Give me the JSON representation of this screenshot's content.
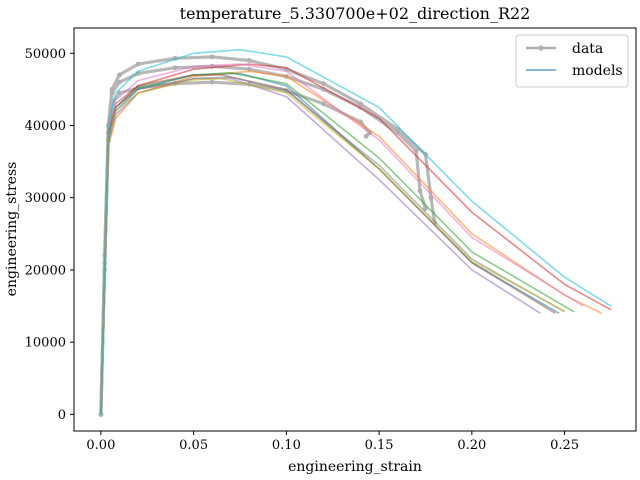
{
  "chart_data": {
    "type": "line",
    "title": "temperature_5.330700e+02_direction_R22",
    "xlabel": "engineering_strain",
    "ylabel": "engineering_stress",
    "xlim": [
      -0.0145,
      0.2885
    ],
    "ylim": [
      -2300,
      53500
    ],
    "xticks": [
      0.0,
      0.05,
      0.1,
      0.15,
      0.2,
      0.25
    ],
    "xtick_labels": [
      "0.00",
      "0.05",
      "0.10",
      "0.15",
      "0.20",
      "0.25"
    ],
    "yticks": [
      0,
      10000,
      20000,
      30000,
      40000,
      50000
    ],
    "ytick_labels": [
      "0",
      "10000",
      "20000",
      "30000",
      "40000",
      "50000"
    ],
    "grid": false,
    "legend": {
      "position": "top-right",
      "entries": [
        {
          "label": "data",
          "color": "#b0b0b0",
          "marker": "circle"
        },
        {
          "label": "models",
          "color": "#1f77b4",
          "marker": "none"
        }
      ]
    },
    "data_series": [
      {
        "color": "#b0b0b0",
        "x": [
          0.0,
          0.002,
          0.004,
          0.006,
          0.01,
          0.02,
          0.04,
          0.06,
          0.08,
          0.1,
          0.12,
          0.14,
          0.145,
          0.143
        ],
        "y": [
          0,
          20000,
          38000,
          43000,
          44500,
          45200,
          45800,
          46000,
          45700,
          44800,
          43000,
          40500,
          39000,
          38500
        ]
      },
      {
        "color": "#b0b0b0",
        "x": [
          0.0,
          0.002,
          0.004,
          0.006,
          0.01,
          0.02,
          0.04,
          0.06,
          0.08,
          0.1,
          0.12,
          0.14,
          0.16,
          0.175,
          0.178,
          0.18
        ],
        "y": [
          0,
          22000,
          40000,
          45000,
          47000,
          48500,
          49300,
          49500,
          49000,
          47800,
          45800,
          43000,
          39500,
          36000,
          30000,
          26500
        ]
      },
      {
        "color": "#b0b0b0",
        "x": [
          0.0,
          0.002,
          0.004,
          0.006,
          0.01,
          0.02,
          0.04,
          0.06,
          0.08,
          0.1,
          0.12,
          0.14,
          0.16,
          0.17,
          0.172,
          0.175
        ],
        "y": [
          0,
          21000,
          39000,
          44500,
          46000,
          47200,
          48000,
          48200,
          47800,
          46800,
          45000,
          42500,
          39000,
          36500,
          31000,
          28500
        ]
      }
    ],
    "models": [
      {
        "color": "#1f77b4",
        "x": [
          0.0,
          0.004,
          0.008,
          0.02,
          0.05,
          0.075,
          0.1,
          0.15,
          0.2,
          0.247
        ],
        "y": [
          0,
          38000,
          42000,
          45000,
          47000,
          47200,
          45500,
          34000,
          21000,
          14000
        ]
      },
      {
        "color": "#ff7f0e",
        "x": [
          0.0,
          0.004,
          0.008,
          0.02,
          0.05,
          0.08,
          0.1,
          0.15,
          0.2,
          0.25,
          0.27
        ],
        "y": [
          0,
          37000,
          41000,
          44500,
          46800,
          47500,
          46800,
          38500,
          25000,
          16500,
          14000
        ]
      },
      {
        "color": "#2ca02c",
        "x": [
          0.0,
          0.004,
          0.008,
          0.02,
          0.05,
          0.07,
          0.1,
          0.15,
          0.2,
          0.255
        ],
        "y": [
          0,
          38500,
          42500,
          45200,
          47000,
          47300,
          45800,
          35500,
          22500,
          14200
        ]
      },
      {
        "color": "#d62728",
        "x": [
          0.0,
          0.004,
          0.008,
          0.02,
          0.05,
          0.08,
          0.1,
          0.15,
          0.2,
          0.25,
          0.275
        ],
        "y": [
          0,
          38000,
          42500,
          45500,
          47800,
          48500,
          48000,
          41000,
          28000,
          18000,
          14500
        ]
      },
      {
        "color": "#9467bd",
        "x": [
          0.0,
          0.004,
          0.008,
          0.02,
          0.05,
          0.07,
          0.1,
          0.15,
          0.2,
          0.237
        ],
        "y": [
          0,
          37500,
          41500,
          44500,
          46500,
          46500,
          44000,
          32500,
          20000,
          14000
        ]
      },
      {
        "color": "#8c564b",
        "x": [
          0.0,
          0.004,
          0.008,
          0.02,
          0.05,
          0.065,
          0.1,
          0.15,
          0.2,
          0.245
        ],
        "y": [
          0,
          39000,
          43000,
          45500,
          47000,
          47000,
          45000,
          34000,
          21000,
          14000
        ]
      },
      {
        "color": "#e377c2",
        "x": [
          0.0,
          0.004,
          0.008,
          0.02,
          0.05,
          0.075,
          0.1,
          0.15,
          0.2,
          0.26
        ],
        "y": [
          0,
          39500,
          43500,
          46200,
          48200,
          48500,
          47500,
          38000,
          24500,
          15000
        ]
      },
      {
        "color": "#7f7f7f",
        "x": [
          0.0,
          0.004,
          0.008,
          0.02,
          0.05,
          0.07,
          0.1,
          0.15,
          0.2,
          0.25
        ],
        "y": [
          0,
          38500,
          42500,
          45000,
          46500,
          46700,
          44800,
          34500,
          21500,
          14200
        ]
      },
      {
        "color": "#bcbd22",
        "x": [
          0.0,
          0.004,
          0.008,
          0.02,
          0.05,
          0.065,
          0.1,
          0.15,
          0.2,
          0.25
        ],
        "y": [
          0,
          38000,
          42000,
          44500,
          46300,
          46500,
          44500,
          34000,
          21200,
          14300
        ]
      },
      {
        "color": "#17becf",
        "x": [
          0.0,
          0.004,
          0.008,
          0.02,
          0.05,
          0.075,
          0.1,
          0.15,
          0.2,
          0.25,
          0.275
        ],
        "y": [
          0,
          40000,
          44500,
          47500,
          50000,
          50500,
          49500,
          42500,
          29500,
          19000,
          15000
        ]
      }
    ]
  }
}
